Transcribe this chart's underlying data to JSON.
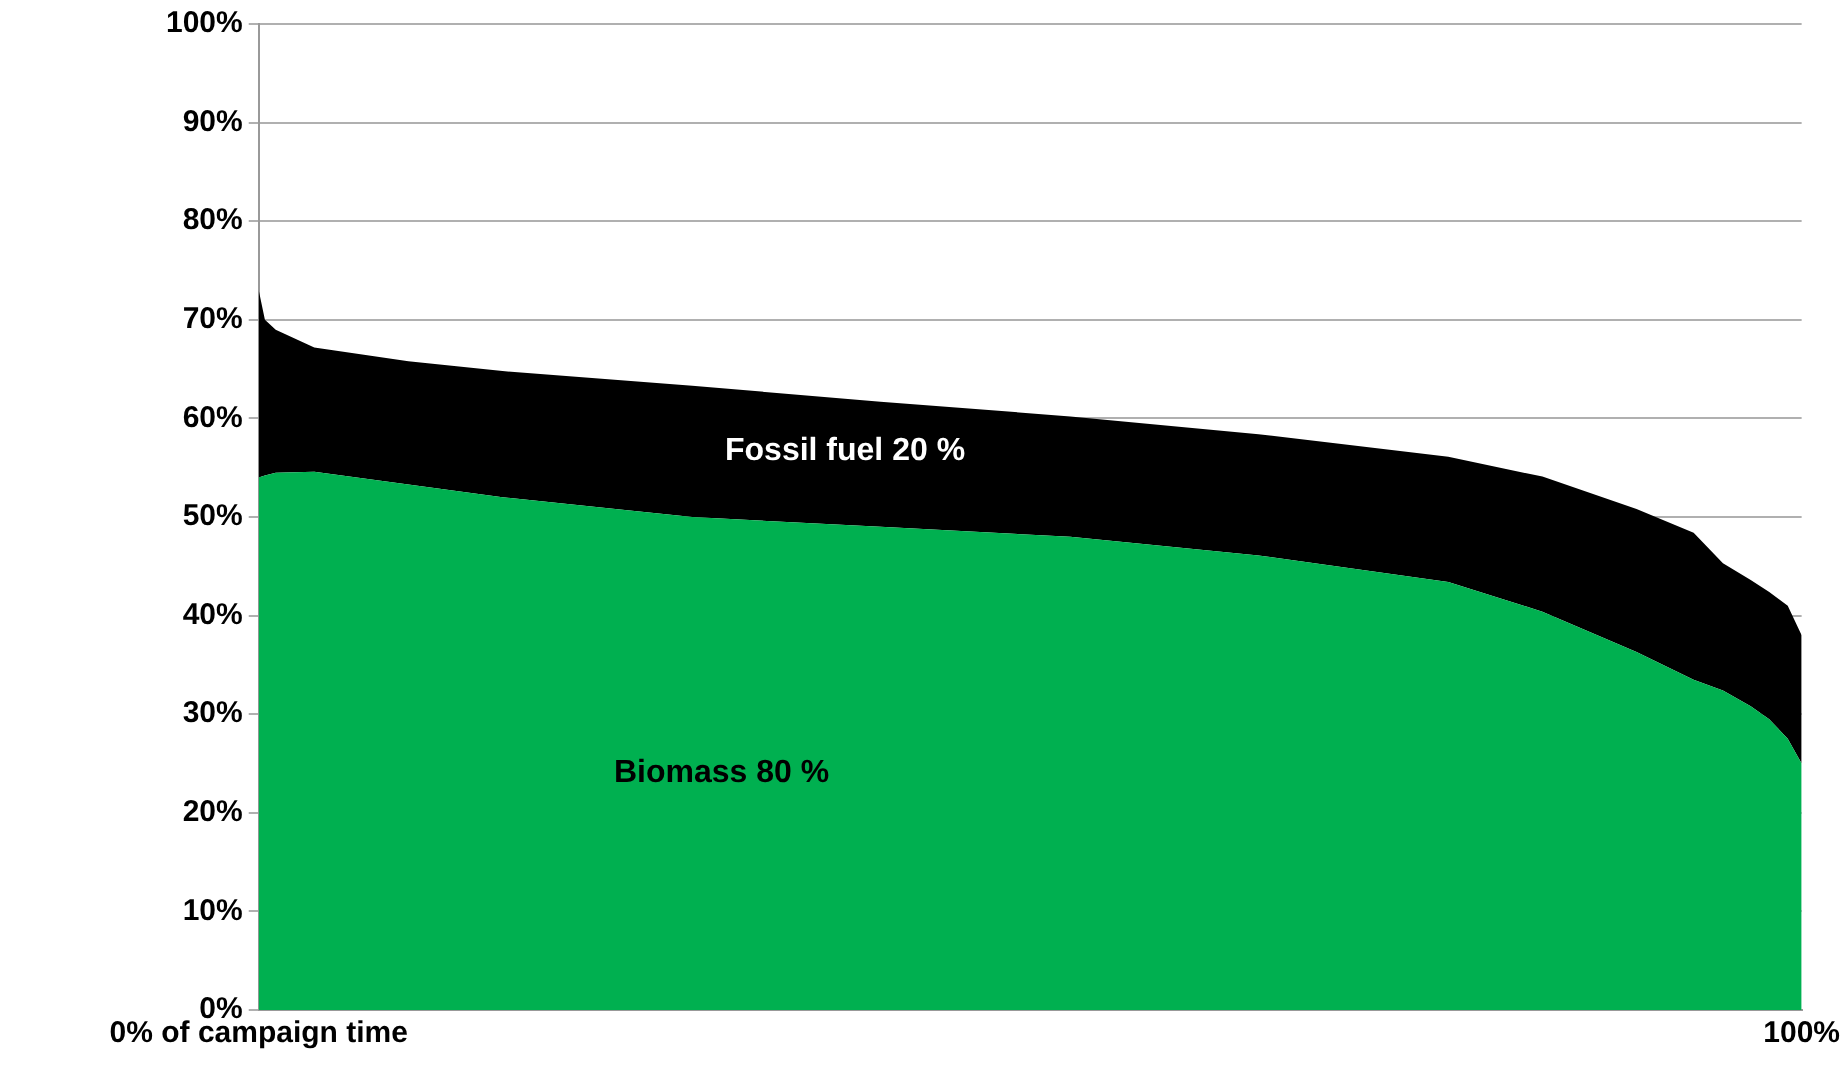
{
  "chart_data": {
    "type": "area",
    "stacked": true,
    "x": [
      0,
      0.4,
      1.1,
      3.6,
      9.7,
      15.8,
      28.1,
      40.3,
      52.6,
      64.8,
      77.1,
      83.2,
      89.3,
      93.0,
      94.9,
      96.7,
      97.9,
      99.1,
      100
    ],
    "series": [
      {
        "name": "Biomass 80 %",
        "color": "#00b050",
        "values": [
          54,
          54.2,
          54.5,
          54.6,
          53.3,
          52,
          50,
          49,
          48,
          46.1,
          43.4,
          40.4,
          36.3,
          33.5,
          32.4,
          30.8,
          29.5,
          27.5,
          25
        ]
      },
      {
        "name": "Fossil fuel 20 %",
        "color": "#000000",
        "values": [
          19,
          15.8,
          14.5,
          12.6,
          12.5,
          12.8,
          13.3,
          12.7,
          12.2,
          12.3,
          12.7,
          13.7,
          14.5,
          14.9,
          12.9,
          12.8,
          12.9,
          13.5,
          13
        ]
      }
    ],
    "xlim": [
      0,
      100
    ],
    "xticks": [
      {
        "value": 0,
        "label": "0% of campaign time"
      },
      {
        "value": 100,
        "label": "100%"
      }
    ],
    "ylim": [
      0,
      100
    ],
    "yticks": [
      {
        "value": 0,
        "label": "0%"
      },
      {
        "value": 10,
        "label": "10%"
      },
      {
        "value": 20,
        "label": "20%"
      },
      {
        "value": 30,
        "label": "30%"
      },
      {
        "value": 40,
        "label": "40%"
      },
      {
        "value": 50,
        "label": "50%"
      },
      {
        "value": 60,
        "label": "60%"
      },
      {
        "value": 70,
        "label": "70%"
      },
      {
        "value": 80,
        "label": "80%"
      },
      {
        "value": 90,
        "label": "90%"
      },
      {
        "value": 100,
        "label": "100%"
      }
    ],
    "grid": "y",
    "legend": false
  }
}
